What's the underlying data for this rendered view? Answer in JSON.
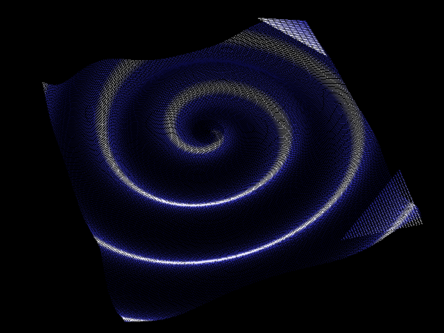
{
  "scene": {
    "subject": "3d-spiral-surface-point-cloud",
    "background_color": "#000000",
    "surface_color": "#3a3ad8",
    "highlight_color": "#ffffff",
    "shadow_color": "#0a0a3c",
    "render_style": "dotted-point-cloud"
  }
}
